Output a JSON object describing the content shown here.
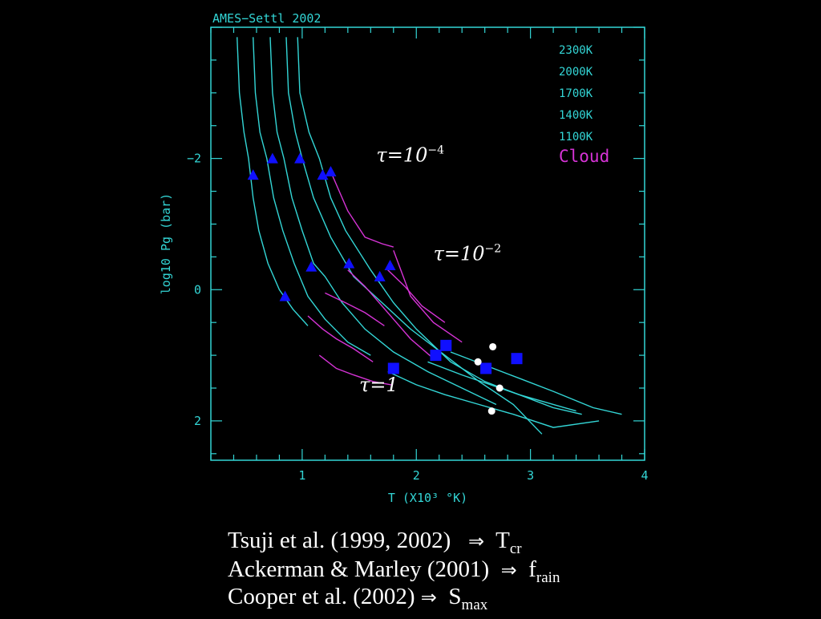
{
  "chart_data": {
    "type": "line",
    "title": "AMES−Settl 2002",
    "xlabel": "T (X10³ °K)",
    "ylabel": "log10 Pg (bar)",
    "xlim": [
      0.2,
      4.0
    ],
    "ylim": [
      2.6,
      -4.0
    ],
    "xticks": [
      1,
      2,
      3,
      4
    ],
    "yticks": [
      -2,
      0,
      2
    ],
    "legend": {
      "placement": "top-right",
      "entries": [
        "2300K",
        "2000K",
        "1700K",
        "1400K",
        "1100K",
        "Cloud"
      ]
    },
    "colors": {
      "model": "#33d6d6",
      "cloud": "#d633d6",
      "frame": "#33d6d6",
      "triangle": "#1010ff",
      "square": "#1010ff",
      "dot": "#ffffff"
    },
    "series": [
      {
        "name": "2300K",
        "x": [
          0.43,
          0.45,
          0.49,
          0.53,
          0.57,
          0.62,
          0.7,
          0.8,
          0.92,
          1.05
        ],
        "y": [
          -3.85,
          -3.0,
          -2.4,
          -2.0,
          -1.4,
          -0.9,
          -0.4,
          0.0,
          0.3,
          0.55
        ]
      },
      {
        "name": "2000K",
        "x": [
          0.57,
          0.59,
          0.63,
          0.69,
          0.75,
          0.83,
          0.93,
          1.05,
          1.2,
          1.4,
          1.6
        ],
        "y": [
          -3.85,
          -3.0,
          -2.4,
          -2.0,
          -1.4,
          -0.9,
          -0.4,
          0.1,
          0.45,
          0.8,
          1.0
        ]
      },
      {
        "name": "1700K",
        "x": [
          0.72,
          0.74,
          0.78,
          0.84,
          0.91,
          1.0,
          1.1,
          1.2,
          1.35,
          1.55,
          1.8,
          2.1,
          2.4,
          2.7
        ],
        "y": [
          -3.85,
          -3.0,
          -2.4,
          -2.0,
          -1.4,
          -0.9,
          -0.4,
          -0.2,
          0.2,
          0.6,
          0.95,
          1.25,
          1.5,
          1.75
        ]
      },
      {
        "name": "1400K",
        "x": [
          0.86,
          0.88,
          0.94,
          1.0,
          1.1,
          1.25,
          1.45,
          1.7,
          1.95,
          2.25,
          2.55,
          2.85,
          3.1
        ],
        "y": [
          -3.85,
          -3.0,
          -2.4,
          -2.0,
          -1.4,
          -0.8,
          -0.2,
          0.2,
          0.6,
          1.0,
          1.4,
          1.75,
          2.2
        ]
      },
      {
        "name": "1100K",
        "x": [
          0.96,
          0.98,
          1.06,
          1.15,
          1.25,
          1.38,
          1.6,
          1.8,
          2.0,
          2.3,
          2.6,
          2.9,
          3.4
        ],
        "y": [
          -3.85,
          -3.0,
          -2.4,
          -2.0,
          -1.4,
          -0.9,
          -0.3,
          0.2,
          0.6,
          1.1,
          1.4,
          1.6,
          1.85
        ]
      },
      {
        "name": "2300K-low",
        "x": [
          1.75,
          2.0,
          2.25,
          2.55,
          2.85,
          3.2,
          3.6
        ],
        "y": [
          1.25,
          1.45,
          1.6,
          1.75,
          1.9,
          2.1,
          2.0
        ]
      },
      {
        "name": "2000K-low",
        "x": [
          2.1,
          2.4,
          2.65,
          2.9,
          3.2,
          3.45
        ],
        "y": [
          1.1,
          1.3,
          1.45,
          1.6,
          1.8,
          1.9
        ]
      },
      {
        "name": "1700K-low",
        "x": [
          2.3,
          2.6,
          2.9,
          3.2,
          3.55,
          3.8
        ],
        "y": [
          0.95,
          1.15,
          1.35,
          1.55,
          1.8,
          1.9
        ]
      }
    ],
    "cloud_segments": [
      {
        "x": [
          1.05,
          1.18,
          1.3,
          1.45,
          1.62
        ],
        "y": [
          0.4,
          0.6,
          0.75,
          0.9,
          1.1
        ]
      },
      {
        "x": [
          1.2,
          1.38,
          1.55,
          1.72
        ],
        "y": [
          0.05,
          0.2,
          0.35,
          0.55
        ]
      },
      {
        "x": [
          1.4,
          1.55,
          1.75,
          1.95,
          2.15
        ],
        "y": [
          -0.3,
          -0.05,
          0.35,
          0.75,
          1.05
        ]
      },
      {
        "x": [
          1.75,
          1.9,
          2.05,
          2.25
        ],
        "y": [
          -0.3,
          -0.05,
          0.25,
          0.5
        ]
      },
      {
        "x": [
          1.25,
          1.4,
          1.55,
          1.7,
          1.8
        ],
        "y": [
          -1.8,
          -1.2,
          -0.8,
          -0.7,
          -0.65
        ]
      },
      {
        "x": [
          1.8,
          1.95,
          2.15,
          2.4
        ],
        "y": [
          -0.6,
          0.1,
          0.5,
          0.8
        ]
      },
      {
        "x": [
          1.15,
          1.3,
          1.45,
          1.62,
          1.78
        ],
        "y": [
          1.0,
          1.2,
          1.3,
          1.4,
          1.45
        ]
      }
    ],
    "triangles": {
      "x": [
        0.57,
        0.74,
        0.98,
        1.18,
        1.25,
        0.85,
        1.08,
        1.41,
        1.68,
        1.77
      ],
      "y": [
        -1.75,
        -2.0,
        -2.0,
        -1.75,
        -1.8,
        0.1,
        -0.35,
        -0.4,
        -0.2,
        -0.37
      ]
    },
    "squares": {
      "x": [
        1.8,
        2.17,
        2.26,
        2.61,
        2.88
      ],
      "y": [
        1.2,
        1.0,
        0.85,
        1.2,
        1.05
      ]
    },
    "dots": {
      "x": [
        2.67,
        2.54,
        2.73,
        2.66
      ],
      "y": [
        0.87,
        1.1,
        1.5,
        1.85
      ]
    },
    "annotations": [
      {
        "label": "τ=10",
        "sup": "−4",
        "x": 1.65,
        "y": -1.95
      },
      {
        "label": "τ=10",
        "sup": "−2",
        "x": 2.15,
        "y": -0.45
      },
      {
        "label": "τ=1",
        "sup": "",
        "x": 1.5,
        "y": 1.55
      }
    ]
  },
  "caption": {
    "line1_text": "Tsuji et al. (1999, 2002)",
    "line1_symbol": "T",
    "line1_sub": "cr",
    "line2_text": "Ackerman & Marley (2001)",
    "line2_symbol": "f",
    "line2_sub": "rain",
    "line3_text": "Cooper et al. (2002)",
    "line3_symbol": "S",
    "line3_sub": "max",
    "arrow": "⇒"
  }
}
